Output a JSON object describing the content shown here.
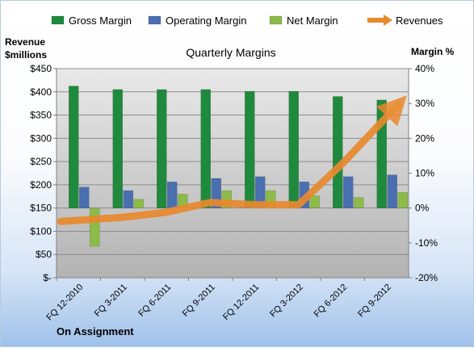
{
  "chart_data": {
    "type": "bar",
    "title": "Quarterly Margins",
    "categories": [
      "FQ 12-2010",
      "FQ 3-2011",
      "FQ 6-2011",
      "FQ 9-2011",
      "FQ 12-2011",
      "FQ 3-2012",
      "FQ 6-2012",
      "FQ 9-2012"
    ],
    "series": [
      {
        "name": "Gross Margin",
        "type": "bar",
        "axis": "right",
        "color": "#1f8a3d",
        "values": [
          35,
          34,
          34,
          34,
          33.5,
          33.5,
          32,
          31
        ]
      },
      {
        "name": "Operating Margin",
        "type": "bar",
        "axis": "right",
        "color": "#4a6fb0",
        "values": [
          6,
          5,
          7.5,
          8.5,
          9,
          7.5,
          9,
          9.5
        ]
      },
      {
        "name": "Net Margin",
        "type": "bar",
        "axis": "right",
        "color": "#8dbb4a",
        "values": [
          -11,
          2.5,
          4,
          5,
          5,
          3.5,
          3,
          4.5
        ]
      },
      {
        "name": "Revenues",
        "type": "line",
        "axis": "left",
        "color": "#e8892e",
        "values": [
          121,
          130,
          141,
          162,
          157,
          157,
          246,
          372
        ]
      }
    ],
    "y_left": {
      "label_lines": [
        "Revenue",
        "$millions"
      ],
      "ticks": [
        "$450",
        "$400",
        "$350",
        "$300",
        "$250",
        "$200",
        "$150",
        "$100",
        "$50",
        "$-"
      ],
      "range": [
        0,
        450
      ]
    },
    "y_right": {
      "label": "Margin %",
      "ticks": [
        "40%",
        "30%",
        "20%",
        "10%",
        "0%",
        "-10%",
        "-20%"
      ],
      "range": [
        -20,
        40
      ]
    },
    "legend_position": "top",
    "grid": true,
    "footer": "On Assignment",
    "colors": {
      "plot_background": "#c0c0c0",
      "gridline": "#8c8c8c"
    }
  }
}
